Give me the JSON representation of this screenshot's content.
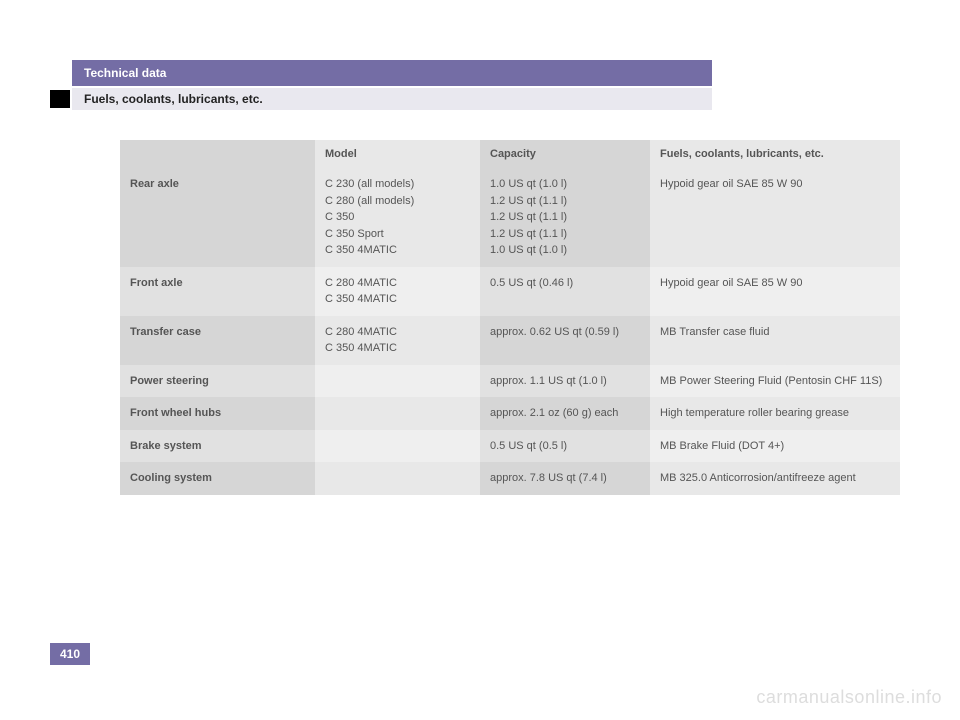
{
  "header": {
    "section": "Technical data",
    "subsection": "Fuels, coolants, lubricants, etc."
  },
  "table": {
    "columns": [
      "",
      "Model",
      "Capacity",
      "Fuels, coolants, lubricants, etc."
    ],
    "rows": [
      {
        "label": "Rear axle",
        "model": "C 230 (all models)\nC 280 (all models)\nC 350\nC 350 Sport\nC 350 4MATIC",
        "capacity": "1.0 US qt (1.0 l)\n1.2 US qt (1.1 l)\n1.2 US qt (1.1 l)\n1.2 US qt (1.1 l)\n1.0 US qt (1.0 l)",
        "fuel": "Hypoid gear oil SAE 85 W 90"
      },
      {
        "label": "Front axle",
        "model": "C 280 4MATIC\nC 350 4MATIC",
        "capacity": "0.5 US qt (0.46 l)",
        "fuel": "Hypoid gear oil SAE 85 W 90"
      },
      {
        "label": "Transfer case",
        "model": "C 280 4MATIC\nC 350 4MATIC",
        "capacity": "approx. 0.62 US qt (0.59 l)",
        "fuel": "MB Transfer case fluid"
      },
      {
        "label": "Power steering",
        "model": "",
        "capacity": "approx. 1.1 US qt (1.0 l)",
        "fuel": "MB Power Steering Fluid (Pentosin CHF 11S)"
      },
      {
        "label": "Front wheel hubs",
        "model": "",
        "capacity": "approx. 2.1 oz (60 g) each",
        "fuel": "High temperature roller bearing grease"
      },
      {
        "label": "Brake system",
        "model": "",
        "capacity": "0.5 US qt (0.5 l)",
        "fuel": "MB Brake Fluid (DOT 4+)"
      },
      {
        "label": "Cooling system",
        "model": "",
        "capacity": "approx. 7.8 US qt (7.4 l)",
        "fuel": "MB 325.0 Anticorrosion/antifreeze agent"
      }
    ]
  },
  "pageNumber": "410",
  "watermark": "carmanualsonline.info",
  "colors": {
    "purple": "#746da5",
    "headerCellA": "#d6d6d6",
    "headerCellB": "#e8e8e8",
    "rowEvenA": "#d6d6d6",
    "rowEvenB": "#e8e8e8",
    "rowOddA": "#e1e1e1",
    "rowOddB": "#efefef",
    "watermark": "#dddddd"
  }
}
